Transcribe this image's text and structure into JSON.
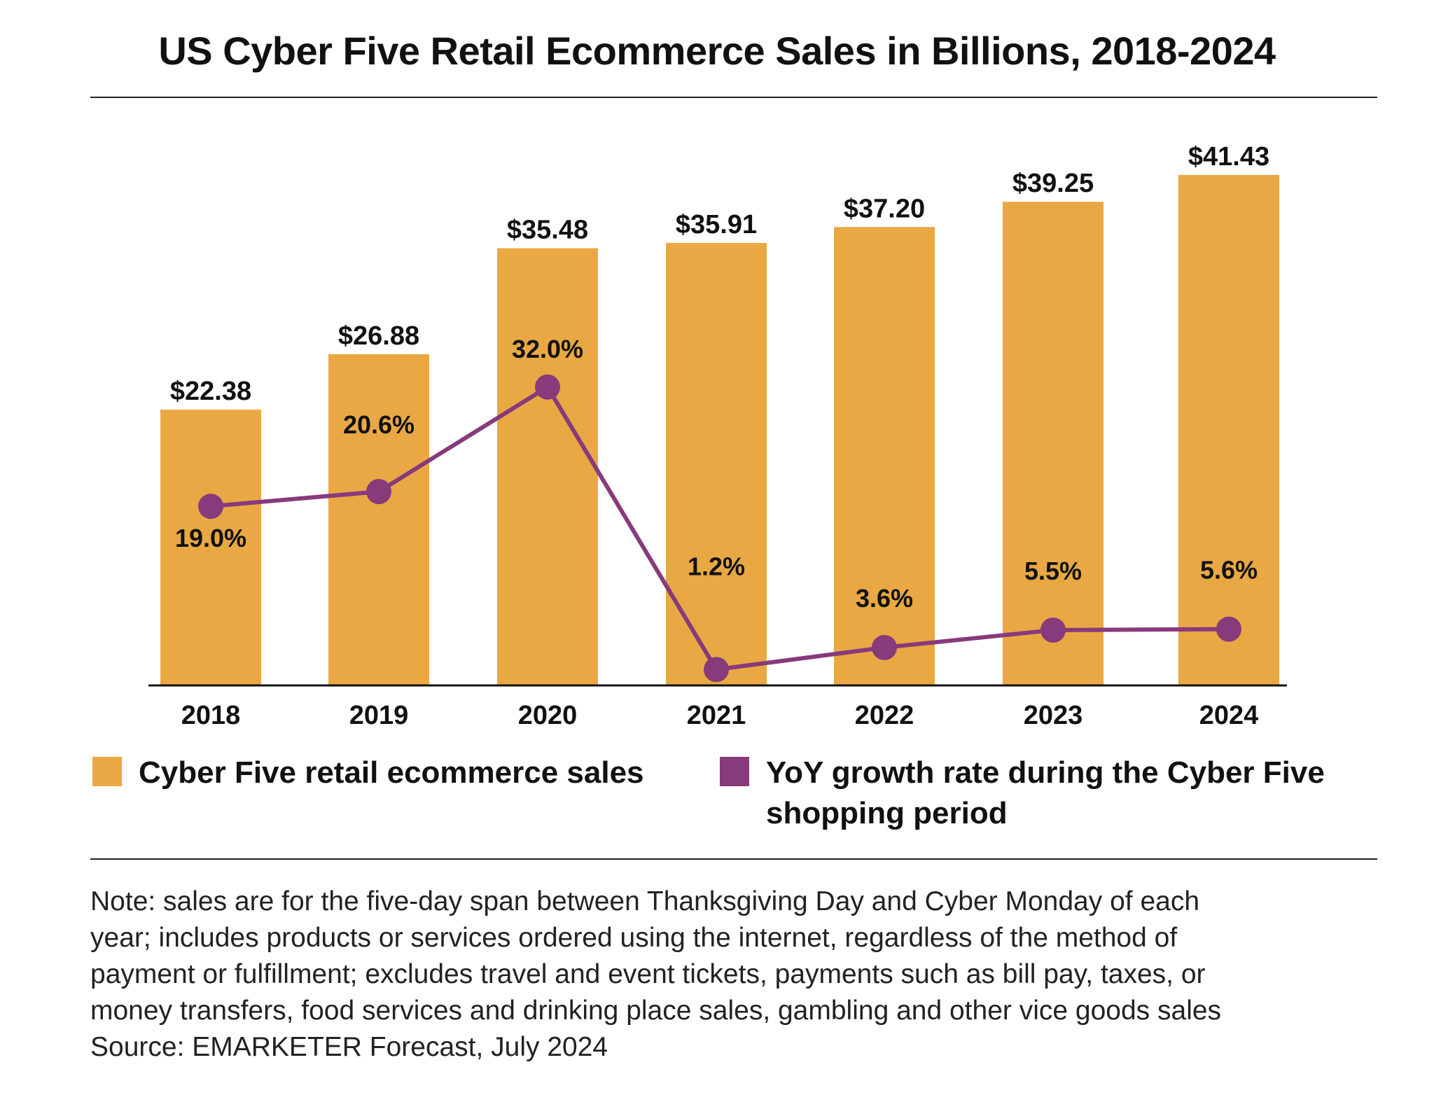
{
  "title": "US Cyber Five Retail Ecommerce Sales in Billions, 2018-2024",
  "colors": {
    "bars": "#E9A843",
    "line": "#873A7C",
    "text": "#111111"
  },
  "chart_data": {
    "type": "bar",
    "title": "US Cyber Five Retail Ecommerce Sales in Billions, 2018-2024",
    "categories": [
      "2018",
      "2019",
      "2020",
      "2021",
      "2022",
      "2023",
      "2024"
    ],
    "series": [
      {
        "name": "Cyber Five retail ecommerce sales",
        "type": "bar",
        "values": [
          22.38,
          26.88,
          35.48,
          35.91,
          37.2,
          39.25,
          41.43
        ],
        "labels": [
          "$22.38",
          "$26.88",
          "$35.48",
          "$35.91",
          "$37.20",
          "$39.25",
          "$41.43"
        ]
      },
      {
        "name": "YoY growth rate during the Cyber Five shopping period",
        "type": "line",
        "values": [
          19.0,
          20.6,
          32.0,
          1.2,
          3.6,
          5.5,
          5.6
        ],
        "labels": [
          "19.0%",
          "20.6%",
          "32.0%",
          "1.2%",
          "3.6%",
          "5.5%",
          "5.6%"
        ]
      }
    ],
    "grid": false,
    "legend": "bottom"
  },
  "legend": {
    "sales": "Cyber Five retail ecommerce sales",
    "growth_line1": "YoY growth rate during the Cyber Five",
    "growth_line2": "shopping period"
  },
  "note": {
    "lines": [
      "Note: sales are for the five-day span between Thanksgiving Day and Cyber Monday of each",
      "year; includes products or services ordered using the internet, regardless of the method of",
      "payment or fulfillment; excludes travel and event tickets, payments such as bill pay, taxes, or",
      "money transfers, food services and drinking place sales, gambling and other vice goods sales"
    ],
    "source": "Source: EMARKETER Forecast, July 2024"
  }
}
